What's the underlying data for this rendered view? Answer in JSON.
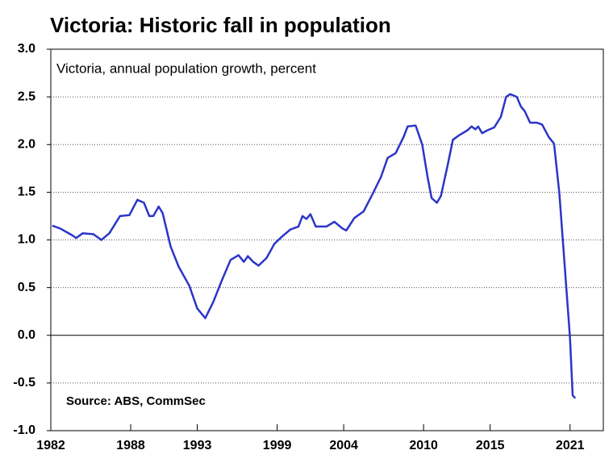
{
  "chart_data": {
    "type": "line",
    "title": "Victoria: Historic fall in population",
    "subtitle": "Victoria, annual population growth, percent",
    "annotation": "Source: ABS, CommSec",
    "grid": true,
    "xlim": [
      1982,
      2023.5
    ],
    "xticks": [
      1982,
      1988,
      1993,
      1999,
      2004,
      2010,
      2015,
      2021
    ],
    "ylim": [
      -1,
      3
    ],
    "yticks": [
      {
        "value": 3,
        "label": "3.0"
      },
      {
        "value": 2.5,
        "label": "2.5"
      },
      {
        "value": 2,
        "label": "2.0"
      },
      {
        "value": 1.5,
        "label": "1.5"
      },
      {
        "value": 1,
        "label": "1.0"
      },
      {
        "value": 0.5,
        "label": "0.5"
      },
      {
        "value": 0,
        "label": "0.0"
      },
      {
        "value": -0.5,
        "label": "-0.5"
      },
      {
        "value": -1,
        "label": "-1.0"
      }
    ],
    "series": [
      {
        "name": "Victoria",
        "color": "#2b35c8",
        "x": [
          1982.1,
          1982.7,
          1983.6,
          1983.9,
          1984.4,
          1985.2,
          1985.8,
          1986.4,
          1987.2,
          1987.9,
          1988.5,
          1989.0,
          1989.4,
          1989.7,
          1990.1,
          1990.4,
          1991.0,
          1991.6,
          1992.4,
          1993.0,
          1993.6,
          1994.2,
          1994.8,
          1995.5,
          1996.1,
          1996.5,
          1996.8,
          1997.2,
          1997.6,
          1998.2,
          1998.8,
          1999.4,
          2000.0,
          2000.6,
          2000.9,
          2001.2,
          2001.5,
          2001.9,
          2002.7,
          2003.3,
          2003.9,
          2004.2,
          2004.8,
          2005.5,
          2006.2,
          2006.8,
          2007.3,
          2007.9,
          2008.5,
          2008.8,
          2009.4,
          2009.9,
          2010.3,
          2010.6,
          2011.0,
          2011.3,
          2011.8,
          2012.2,
          2012.7,
          2013.3,
          2013.6,
          2013.9,
          2014.1,
          2014.4,
          2014.8,
          2015.3,
          2015.8,
          2016.2,
          2016.5,
          2017.0,
          2017.3,
          2017.6,
          2018.0,
          2018.5,
          2018.9,
          2019.4,
          2019.8,
          2020.2,
          2020.6,
          2021.0,
          2021.2,
          2021.4
        ],
        "values": [
          1.15,
          1.12,
          1.05,
          1.02,
          1.07,
          1.06,
          1.0,
          1.07,
          1.25,
          1.26,
          1.42,
          1.39,
          1.25,
          1.25,
          1.35,
          1.28,
          0.93,
          0.72,
          0.52,
          0.28,
          0.18,
          0.35,
          0.56,
          0.79,
          0.84,
          0.77,
          0.83,
          0.77,
          0.73,
          0.81,
          0.96,
          1.04,
          1.11,
          1.14,
          1.25,
          1.22,
          1.27,
          1.14,
          1.14,
          1.19,
          1.12,
          1.1,
          1.23,
          1.3,
          1.49,
          1.66,
          1.86,
          1.91,
          2.08,
          2.19,
          2.2,
          2.0,
          1.66,
          1.44,
          1.39,
          1.46,
          1.78,
          2.05,
          2.1,
          2.15,
          2.19,
          2.16,
          2.19,
          2.12,
          2.15,
          2.18,
          2.29,
          2.5,
          2.53,
          2.5,
          2.4,
          2.35,
          2.23,
          2.23,
          2.21,
          2.08,
          2.01,
          1.49,
          0.73,
          -0.03,
          -0.63,
          -0.66
        ]
      }
    ]
  }
}
